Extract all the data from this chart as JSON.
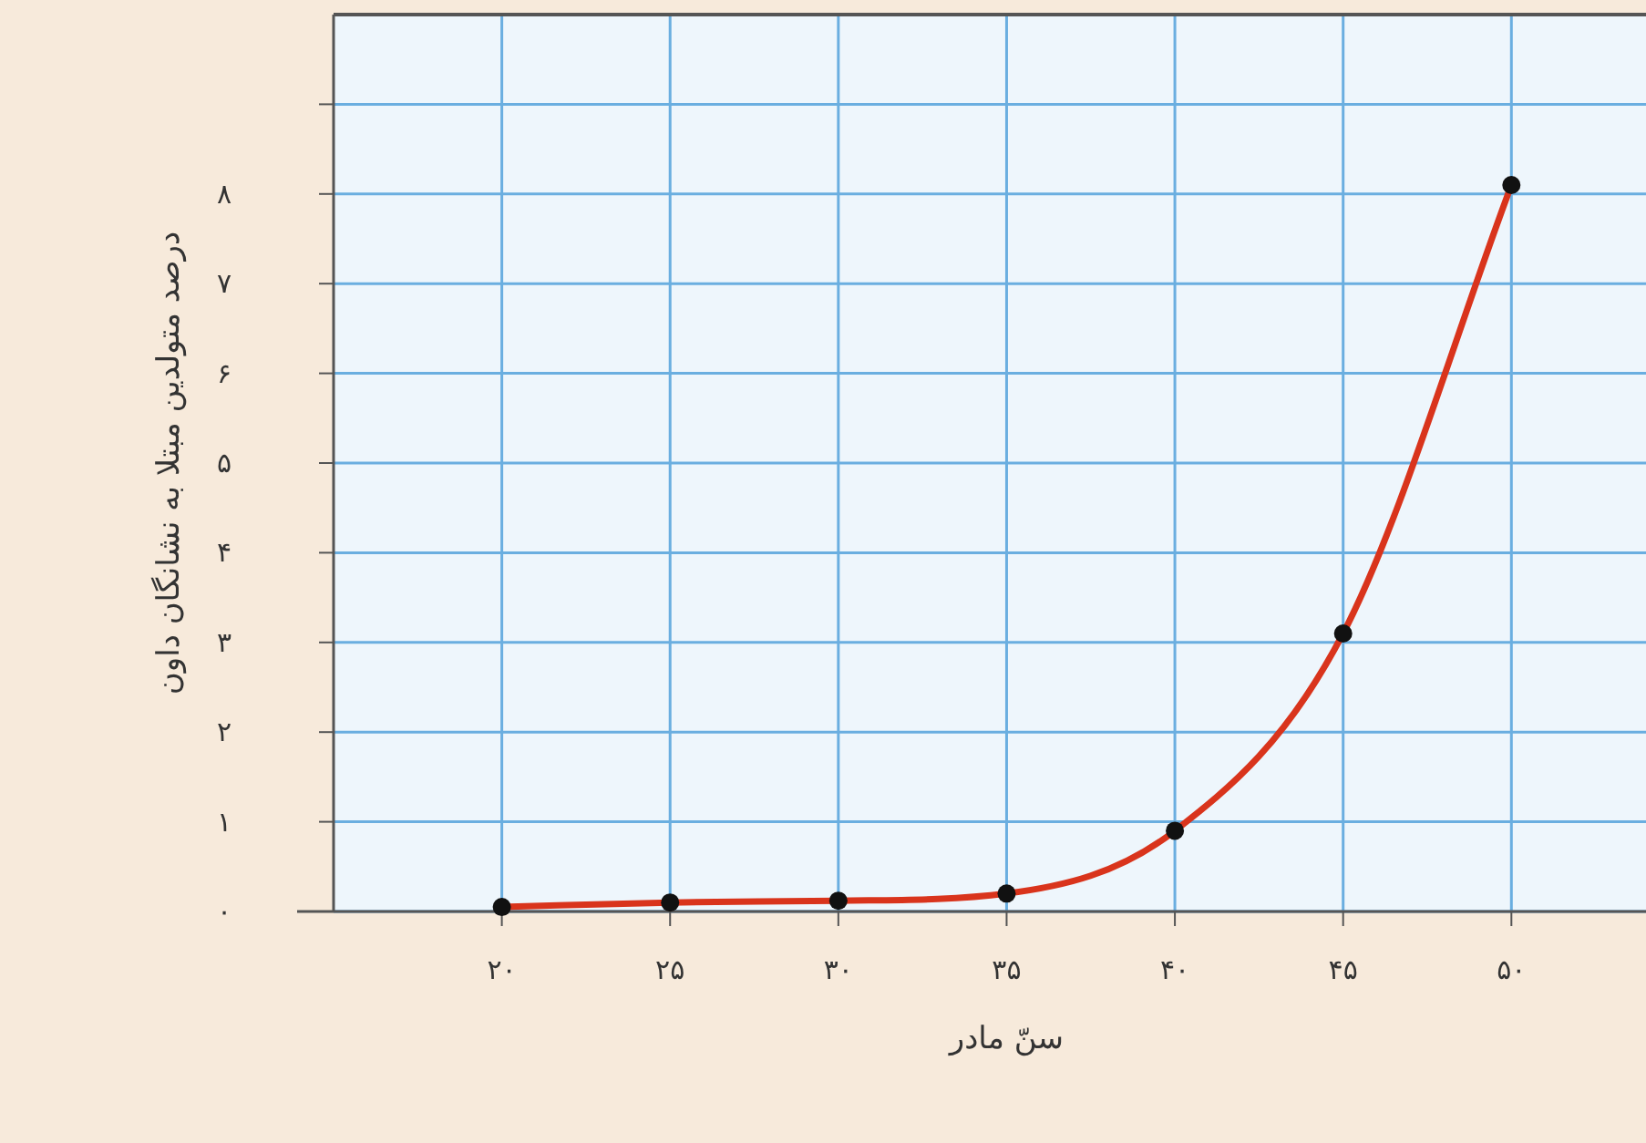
{
  "chart_data": {
    "type": "line",
    "xlabel": "سنّ مادر",
    "ylabel": "درصد متولدین مبتلا به نشانگان داون",
    "x": [
      20,
      25,
      30,
      35,
      40,
      45,
      50
    ],
    "series": [
      {
        "type": "line",
        "color": "#d9341c",
        "values": [
          0.05,
          0.1,
          0.12,
          0.2,
          0.9,
          3.1,
          8.1
        ],
        "marker": "none"
      },
      {
        "type": "scatter",
        "color": "#111111",
        "values": [
          0.05,
          0.1,
          0.12,
          0.2,
          0.9,
          3.1,
          8.1
        ],
        "marker": "circle"
      }
    ],
    "xlim": [
      15,
      54
    ],
    "ylim": [
      0,
      10
    ],
    "xticks": [
      {
        "value": 20,
        "label": "۲۰"
      },
      {
        "value": 25,
        "label": "۲۵"
      },
      {
        "value": 30,
        "label": "۳۰"
      },
      {
        "value": 35,
        "label": "۳۵"
      },
      {
        "value": 40,
        "label": "۴۰"
      },
      {
        "value": 45,
        "label": "۴۵"
      },
      {
        "value": 50,
        "label": "۵۰"
      }
    ],
    "yticks": [
      {
        "value": 0,
        "label": "۰"
      },
      {
        "value": 1,
        "label": "۱"
      },
      {
        "value": 2,
        "label": "۲"
      },
      {
        "value": 3,
        "label": "۳"
      },
      {
        "value": 4,
        "label": "۴"
      },
      {
        "value": 5,
        "label": "۵"
      },
      {
        "value": 6,
        "label": "۶"
      },
      {
        "value": 7,
        "label": "۷"
      },
      {
        "value": 8,
        "label": "۸"
      },
      {
        "value": 9,
        "label": null
      }
    ],
    "grid": true
  }
}
